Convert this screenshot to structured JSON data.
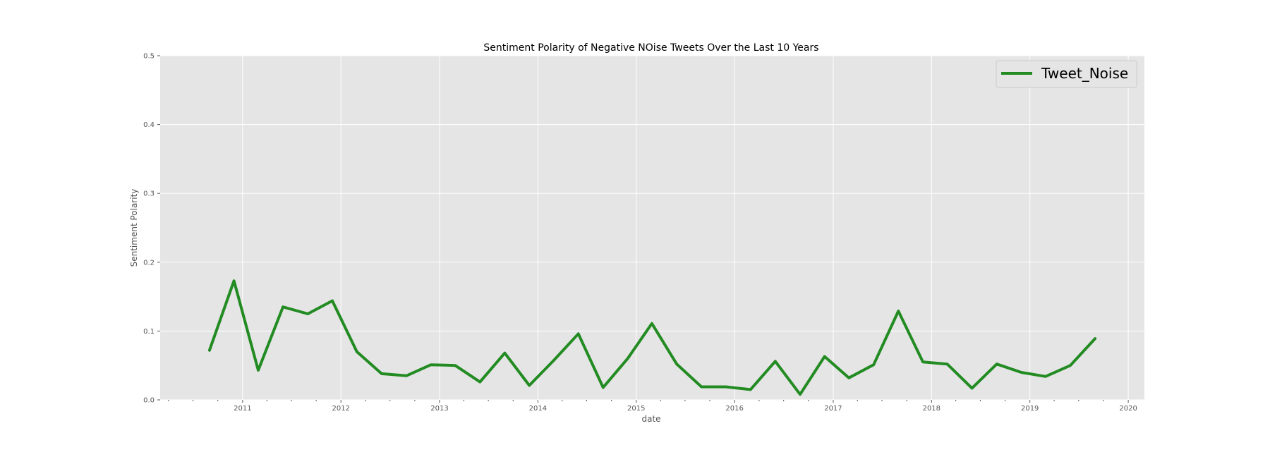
{
  "chart_data": {
    "type": "line",
    "title": "Sentiment Polarity of Negative NOise Tweets Over the Last 10 Years",
    "xlabel": "date",
    "ylabel": "Sentiment Polarity",
    "xlim": [
      "2010-03-01",
      "2020-03-01"
    ],
    "ylim": [
      0,
      0.5
    ],
    "x_ticks": [
      "2011",
      "2012",
      "2013",
      "2014",
      "2015",
      "2016",
      "2017",
      "2018",
      "2019",
      "2020"
    ],
    "y_ticks": [
      "0.0",
      "0.1",
      "0.2",
      "0.3",
      "0.4",
      "0.5"
    ],
    "grid": true,
    "legend_position": "top-right",
    "background": "#e5e5e5",
    "series": [
      {
        "name": "Tweet_Noise",
        "color": "#228b22",
        "x": [
          "2010-08-31",
          "2010-11-30",
          "2011-02-28",
          "2011-05-31",
          "2011-08-31",
          "2011-11-30",
          "2012-02-29",
          "2012-05-31",
          "2012-08-31",
          "2012-11-30",
          "2013-02-28",
          "2013-05-31",
          "2013-08-31",
          "2013-11-30",
          "2014-02-28",
          "2014-05-31",
          "2014-08-31",
          "2014-11-30",
          "2015-02-28",
          "2015-05-31",
          "2015-08-31",
          "2015-11-30",
          "2016-02-29",
          "2016-05-31",
          "2016-08-31",
          "2016-11-30",
          "2017-02-28",
          "2017-05-31",
          "2017-08-31",
          "2017-11-30",
          "2018-02-28",
          "2018-05-31",
          "2018-08-31",
          "2018-11-30",
          "2019-02-28",
          "2019-05-31",
          "2019-08-31"
        ],
        "values": [
          0.072,
          0.173,
          0.043,
          0.135,
          0.125,
          0.144,
          0.07,
          0.038,
          0.035,
          0.051,
          0.05,
          0.026,
          0.068,
          0.021,
          0.057,
          0.096,
          0.018,
          0.06,
          0.111,
          0.052,
          0.019,
          0.019,
          0.015,
          0.056,
          0.008,
          0.063,
          0.032,
          0.051,
          0.129,
          0.055,
          0.052,
          0.017,
          0.052,
          0.04,
          0.034,
          0.05,
          0.089
        ]
      }
    ]
  }
}
